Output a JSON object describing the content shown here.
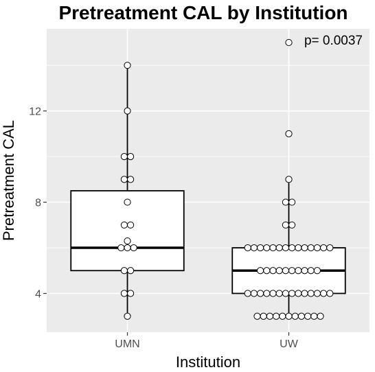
{
  "chart_data": {
    "type": "box",
    "title": "Pretreatment CAL by Institution",
    "xlabel": "Institution",
    "ylabel": "Pretreatment CAL",
    "annotation": "p= 0.0037",
    "categories": [
      "UMN",
      "UW"
    ],
    "ylim": [
      2.3,
      15.6
    ],
    "yticks": [
      4,
      8,
      12
    ],
    "grid": true,
    "boxes": [
      {
        "category": "UMN",
        "q1": 5,
        "median": 6,
        "q3": 8.5,
        "whisker_low": 3,
        "whisker_high": 14
      },
      {
        "category": "UW",
        "q1": 4,
        "median": 5,
        "q3": 6,
        "whisker_low": 3,
        "whisker_high": 9
      }
    ],
    "points": [
      {
        "category": "UMN",
        "values": [
          14,
          12,
          10,
          10,
          9,
          9,
          8,
          7,
          7,
          6.3,
          6,
          6,
          6,
          5,
          5,
          4,
          4,
          3
        ]
      },
      {
        "category": "UW",
        "values": [
          15,
          11,
          9,
          8,
          8,
          7,
          7,
          6,
          6,
          6,
          6,
          6,
          6,
          6,
          6,
          6,
          6,
          6,
          6,
          6,
          6,
          5,
          5,
          5,
          5,
          5,
          5,
          5,
          5,
          5,
          5,
          4,
          4,
          4,
          4,
          4,
          4,
          4,
          4,
          4,
          4,
          4,
          4,
          4,
          4,
          3,
          3,
          3,
          3,
          3,
          3,
          3,
          3,
          3,
          3,
          3
        ]
      }
    ],
    "colors": {
      "panel": "#ebebeb",
      "grid": "#ffffff",
      "box_fill": "#ffffff",
      "stroke": "#000000"
    }
  }
}
